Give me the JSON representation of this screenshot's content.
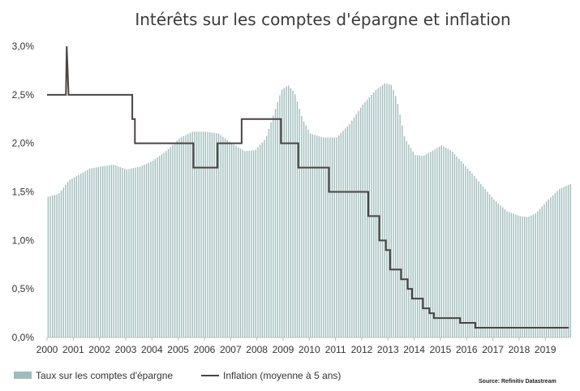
{
  "colors": {
    "bars": "#9fbcbb",
    "line": "#4a4442",
    "axis": "#bfbfbf",
    "text": "#333333"
  },
  "chart_data": {
    "type": "bar",
    "title": "Intérêts sur les comptes d'épargne et inflation",
    "xlabel": "",
    "ylabel": "",
    "ylim": [
      0,
      3.0
    ],
    "grid": false,
    "legend_position": "bottom-left",
    "source": "Source: Refinitiv Datastream",
    "x_ticks": [
      "2000",
      "2001",
      "2002",
      "2003",
      "2004",
      "2005",
      "2006",
      "2007",
      "2008",
      "2009",
      "2010",
      "2011",
      "2012",
      "2013",
      "2014",
      "2015",
      "2016",
      "2017",
      "2018",
      "2019"
    ],
    "y_ticks": [
      "0,0%",
      "0,5%",
      "1,0%",
      "1,5%",
      "2,0%",
      "2,5%",
      "3,0%"
    ],
    "series": [
      {
        "name": "Taux sur les comptes d'épargne",
        "type": "bar",
        "anchors": [
          [
            2000.0,
            1.45
          ],
          [
            2000.4,
            1.48
          ],
          [
            2000.8,
            1.62
          ],
          [
            2001.2,
            1.68
          ],
          [
            2001.6,
            1.74
          ],
          [
            2002.0,
            1.76
          ],
          [
            2002.5,
            1.78
          ],
          [
            2003.0,
            1.73
          ],
          [
            2003.5,
            1.76
          ],
          [
            2004.0,
            1.82
          ],
          [
            2004.5,
            1.92
          ],
          [
            2005.0,
            2.05
          ],
          [
            2005.5,
            2.12
          ],
          [
            2006.0,
            2.12
          ],
          [
            2006.5,
            2.1
          ],
          [
            2007.0,
            2.0
          ],
          [
            2007.5,
            1.92
          ],
          [
            2007.9,
            1.93
          ],
          [
            2008.3,
            2.05
          ],
          [
            2008.6,
            2.3
          ],
          [
            2008.9,
            2.55
          ],
          [
            2009.15,
            2.6
          ],
          [
            2009.4,
            2.52
          ],
          [
            2009.7,
            2.25
          ],
          [
            2010.0,
            2.1
          ],
          [
            2010.5,
            2.06
          ],
          [
            2011.0,
            2.06
          ],
          [
            2011.5,
            2.2
          ],
          [
            2012.0,
            2.4
          ],
          [
            2012.5,
            2.55
          ],
          [
            2012.85,
            2.62
          ],
          [
            2013.1,
            2.6
          ],
          [
            2013.3,
            2.45
          ],
          [
            2013.6,
            2.05
          ],
          [
            2014.0,
            1.88
          ],
          [
            2014.3,
            1.87
          ],
          [
            2014.7,
            1.93
          ],
          [
            2015.0,
            1.98
          ],
          [
            2015.4,
            1.92
          ],
          [
            2015.8,
            1.8
          ],
          [
            2016.2,
            1.68
          ],
          [
            2016.6,
            1.55
          ],
          [
            2017.0,
            1.42
          ],
          [
            2017.5,
            1.3
          ],
          [
            2018.0,
            1.25
          ],
          [
            2018.3,
            1.24
          ],
          [
            2018.6,
            1.28
          ],
          [
            2019.0,
            1.4
          ],
          [
            2019.5,
            1.53
          ],
          [
            2019.9,
            1.58
          ]
        ]
      },
      {
        "name": "Inflation (moyenne à 5 ans)",
        "type": "step-line",
        "points": [
          [
            2000.0,
            2.5
          ],
          [
            2000.72,
            2.5
          ],
          [
            2000.75,
            3.0
          ],
          [
            2000.82,
            2.5
          ],
          [
            2003.25,
            2.5
          ],
          [
            2003.25,
            2.25
          ],
          [
            2003.35,
            2.25
          ],
          [
            2003.35,
            2.0
          ],
          [
            2005.58,
            2.0
          ],
          [
            2005.58,
            1.75
          ],
          [
            2006.5,
            1.75
          ],
          [
            2006.5,
            2.0
          ],
          [
            2007.42,
            2.0
          ],
          [
            2007.42,
            2.25
          ],
          [
            2008.92,
            2.25
          ],
          [
            2008.92,
            2.0
          ],
          [
            2009.58,
            2.0
          ],
          [
            2009.58,
            1.75
          ],
          [
            2010.75,
            1.75
          ],
          [
            2010.75,
            1.5
          ],
          [
            2012.25,
            1.5
          ],
          [
            2012.25,
            1.25
          ],
          [
            2012.67,
            1.25
          ],
          [
            2012.67,
            1.0
          ],
          [
            2012.92,
            1.0
          ],
          [
            2012.92,
            0.9
          ],
          [
            2013.08,
            0.9
          ],
          [
            2013.08,
            0.7
          ],
          [
            2013.5,
            0.7
          ],
          [
            2013.5,
            0.6
          ],
          [
            2013.75,
            0.6
          ],
          [
            2013.75,
            0.5
          ],
          [
            2013.92,
            0.5
          ],
          [
            2013.92,
            0.4
          ],
          [
            2014.33,
            0.4
          ],
          [
            2014.33,
            0.3
          ],
          [
            2014.58,
            0.3
          ],
          [
            2014.58,
            0.25
          ],
          [
            2014.75,
            0.25
          ],
          [
            2014.75,
            0.2
          ],
          [
            2015.75,
            0.2
          ],
          [
            2015.75,
            0.15
          ],
          [
            2016.33,
            0.15
          ],
          [
            2016.33,
            0.1
          ],
          [
            2019.9,
            0.1
          ]
        ]
      }
    ]
  }
}
